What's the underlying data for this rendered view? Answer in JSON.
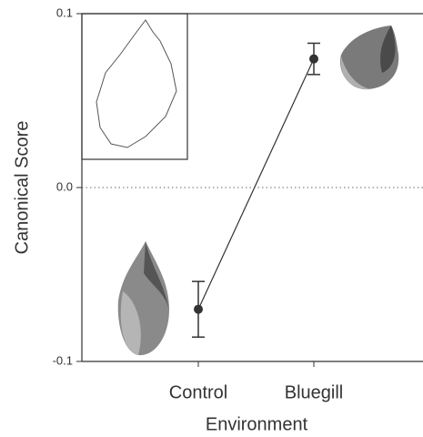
{
  "chart_data": {
    "type": "line",
    "xlabel": "Environment",
    "ylabel": "Canonical Score",
    "categories": [
      "Control",
      "Bluegill"
    ],
    "values": [
      -0.07,
      0.074
    ],
    "errors": [
      0.016,
      0.009
    ],
    "color": "#333333",
    "ylim": [
      -0.1,
      0.1
    ],
    "yticks": [
      -0.1,
      {
        "value": 0,
        "label": "0.0"
      },
      0.1
    ],
    "zero_line": true
  }
}
